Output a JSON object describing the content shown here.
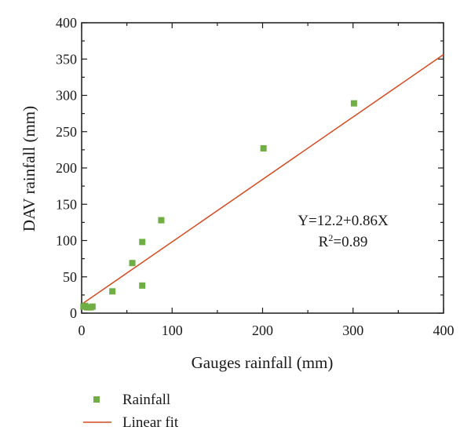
{
  "chart_data": {
    "type": "scatter",
    "xlabel": "Gauges rainfall (mm)",
    "ylabel": "DAV rainfall (mm)",
    "xlim": [
      0,
      400
    ],
    "ylim": [
      0,
      400
    ],
    "x_ticks": [
      0,
      100,
      200,
      300,
      400
    ],
    "y_ticks": [
      0,
      50,
      100,
      150,
      200,
      250,
      300,
      350,
      400
    ],
    "x_tick_labels": [
      "0",
      "100",
      "200",
      "300",
      "400"
    ],
    "y_tick_labels": [
      "0",
      "50",
      "100",
      "150",
      "200",
      "250",
      "300",
      "350",
      "400"
    ],
    "grid": false,
    "legend_position": "bottom-left, below plot",
    "series": [
      {
        "name": "Rainfall",
        "kind": "points",
        "marker": "square",
        "color": "#6fae45",
        "points": [
          [
            2,
            9
          ],
          [
            4,
            10
          ],
          [
            6,
            8
          ],
          [
            8,
            8
          ],
          [
            10,
            8
          ],
          [
            12,
            9
          ],
          [
            34,
            30
          ],
          [
            56,
            69
          ],
          [
            67,
            38
          ],
          [
            67,
            98
          ],
          [
            88,
            128
          ],
          [
            201,
            227
          ],
          [
            301,
            289
          ]
        ]
      },
      {
        "name": "Linear fit",
        "kind": "line",
        "color": "#d44a1e",
        "intercept": 12.2,
        "slope": 0.86,
        "x_range": [
          0,
          400
        ]
      }
    ],
    "annotations": {
      "equation": "Y=12.2+0.86X",
      "r2_prefix": "R",
      "r2_superscript": "2",
      "r2_suffix": "=0.89"
    }
  }
}
